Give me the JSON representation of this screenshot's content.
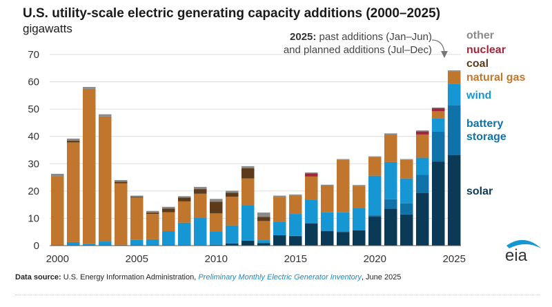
{
  "chart_data": {
    "type": "bar",
    "stacked": true,
    "title": "U.S. utility-scale electric generating capacity additions (2000–2025)",
    "ylabel": "gigawatts",
    "xlabel": "",
    "ylim": [
      0,
      70
    ],
    "yticks": [
      0,
      10,
      20,
      30,
      40,
      50,
      60,
      70
    ],
    "xtick_labels": [
      "2000",
      "2005",
      "2010",
      "2015",
      "2020",
      "2025"
    ],
    "grid": true,
    "legend_placement": "right",
    "categories": [
      2000,
      2001,
      2002,
      2003,
      2004,
      2005,
      2006,
      2007,
      2008,
      2009,
      2010,
      2011,
      2012,
      2013,
      2014,
      2015,
      2016,
      2017,
      2018,
      2019,
      2020,
      2021,
      2022,
      2023,
      2024,
      2025
    ],
    "series": [
      {
        "name": "solar",
        "color": "#0b3a57",
        "values": [
          0,
          0,
          0,
          0,
          0,
          0,
          0,
          0,
          0.1,
          0.2,
          0.3,
          0.8,
          1.8,
          0.9,
          3.8,
          3.5,
          8.1,
          5.3,
          5.0,
          5.6,
          10.6,
          13.5,
          11.4,
          19.3,
          30.8,
          33.2
        ]
      },
      {
        "name": "battery storage",
        "color": "#0f72a8",
        "values": [
          0,
          0,
          0,
          0,
          0,
          0,
          0,
          0,
          0,
          0,
          0,
          0,
          0,
          0,
          0,
          0.1,
          0.2,
          0.2,
          0.2,
          0.1,
          0.5,
          3.5,
          4.1,
          6.7,
          10.9,
          18.2
        ]
      },
      {
        "name": "wind",
        "color": "#1696d2",
        "values": [
          0,
          1.3,
          0.6,
          1.5,
          0.3,
          2.1,
          2.3,
          5.3,
          8.3,
          9.9,
          4.9,
          6.6,
          13.0,
          1.1,
          4.9,
          8.0,
          8.6,
          6.7,
          7.0,
          8.1,
          14.5,
          13.6,
          9.1,
          6.2,
          5.0,
          7.9
        ]
      },
      {
        "name": "natural gas",
        "color": "#c1762d",
        "values": [
          25.5,
          36.5,
          56.8,
          45.8,
          22.5,
          15.5,
          9.3,
          6.9,
          7.8,
          8.9,
          6.6,
          10.5,
          9.8,
          7.0,
          9.2,
          6.8,
          8.4,
          9.8,
          19.2,
          8.0,
          6.8,
          10.1,
          6.8,
          8.5,
          2.5,
          4.6
        ]
      },
      {
        "name": "coal",
        "color": "#5c3a1a",
        "values": [
          0,
          0.6,
          0,
          0,
          0.6,
          0.3,
          0.5,
          1.4,
          1.4,
          1.7,
          4.3,
          1.5,
          3.7,
          1.5,
          0,
          0,
          0,
          0,
          0,
          0,
          0,
          0,
          0,
          0,
          0,
          0
        ]
      },
      {
        "name": "nuclear",
        "color": "#a12639",
        "values": [
          0,
          0,
          0,
          0,
          0,
          0,
          0,
          0,
          0,
          0,
          0,
          0,
          0,
          0,
          0,
          0,
          1.1,
          0,
          0,
          0,
          0,
          0,
          0,
          1.1,
          1.1,
          0
        ]
      },
      {
        "name": "other",
        "color": "#8a8a8a",
        "values": [
          0.8,
          0.8,
          0.7,
          0.8,
          0.6,
          0.4,
          0.6,
          0.6,
          0.5,
          0.8,
          1.0,
          0.7,
          0.8,
          1.6,
          0.4,
          0.3,
          0.4,
          0.3,
          0.3,
          0.4,
          0.3,
          0.4,
          0.3,
          0.4,
          0.3,
          0.3
        ]
      }
    ],
    "annotation": {
      "bold": "2025:",
      "line1_rest": " past additions (Jan–Jun)",
      "line2": "and planned additions (Jul–Dec)"
    },
    "legend": [
      {
        "label": "other",
        "color": "#8a8a8a"
      },
      {
        "label": "nuclear",
        "color": "#a12639"
      },
      {
        "label": "coal",
        "color": "#5c3a1a"
      },
      {
        "label": "natural gas",
        "color": "#c1762d"
      },
      {
        "label": "wind",
        "color": "#1696d2"
      },
      {
        "label": "battery",
        "color": "#0f72a8"
      },
      {
        "label": "storage",
        "color": "#0f72a8"
      },
      {
        "label": "solar",
        "color": "#0b3a57"
      }
    ]
  },
  "source": {
    "label": "Data source:",
    "text": " U.S. Energy Information Administration, ",
    "link": "Preliminary Monthly Electric Generator Inventory",
    "suffix": ", June 2025"
  },
  "logo": {
    "text": "eia",
    "arc_color": "#1696d2"
  }
}
